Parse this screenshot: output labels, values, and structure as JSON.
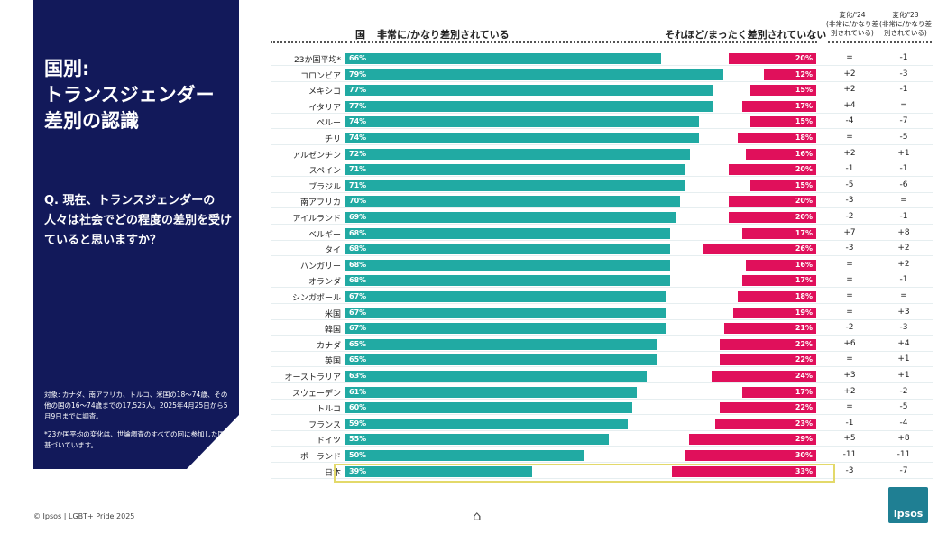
{
  "panel": {
    "title": "国別:\nトランスジェンダー\n差別の認識",
    "question": "Q. 現在、トランスジェンダーの人々は社会でどの程度の差別を受けていると思いますか？",
    "note1": "対象: カナダ、南アフリカ、トルコ、米国の18～74歳、その他の国の16～74歳までの17,525人。2025年4月25日から5月9日までに調査。",
    "note2": "*23か国平均の変化は、世論調査のすべての回に参加した国に基づいています。"
  },
  "footer": "© Ipsos | LGBT+ Pride 2025",
  "logo": "Ipsos",
  "chart_data": {
    "type": "bar",
    "headers": {
      "country": "国",
      "left": "非常に/かなり差別されている",
      "right": "それほど/まったく差別されていない",
      "chg24": "変化/'24\n(非常に/かなり差別されている)",
      "chg23": "変化/'23\n(非常に/かなり差別されている)"
    },
    "colors": {
      "discriminated": "#21aaa3",
      "not_discriminated": "#e0105b",
      "highlight": "#e3d96a"
    },
    "highlighted": "日本",
    "rows": [
      [
        "23か国平均*",
        66,
        20,
        "=",
        "-1"
      ],
      [
        "コロンビア",
        79,
        12,
        "+2",
        "-3"
      ],
      [
        "メキシコ",
        77,
        15,
        "+2",
        "-1"
      ],
      [
        "イタリア",
        77,
        17,
        "+4",
        "="
      ],
      [
        "ペルー",
        74,
        15,
        "-4",
        "-7"
      ],
      [
        "チリ",
        74,
        18,
        "=",
        "-5"
      ],
      [
        "アルゼンチン",
        72,
        16,
        "+2",
        "+1"
      ],
      [
        "スペイン",
        71,
        20,
        "-1",
        "-1"
      ],
      [
        "ブラジル",
        71,
        15,
        "-5",
        "-6"
      ],
      [
        "南アフリカ",
        70,
        20,
        "-3",
        "="
      ],
      [
        "アイルランド",
        69,
        20,
        "-2",
        "-1"
      ],
      [
        "ベルギー",
        68,
        17,
        "+7",
        "+8"
      ],
      [
        "タイ",
        68,
        26,
        "-3",
        "+2"
      ],
      [
        "ハンガリー",
        68,
        16,
        "=",
        "+2"
      ],
      [
        "オランダ",
        68,
        17,
        "=",
        "-1"
      ],
      [
        "シンガポール",
        67,
        18,
        "=",
        "="
      ],
      [
        "米国",
        67,
        19,
        "=",
        "+3"
      ],
      [
        "韓国",
        67,
        21,
        "-2",
        "-3"
      ],
      [
        "カナダ",
        65,
        22,
        "+6",
        "+4"
      ],
      [
        "英国",
        65,
        22,
        "=",
        "+1"
      ],
      [
        "オーストラリア",
        63,
        24,
        "+3",
        "+1"
      ],
      [
        "スウェーデン",
        61,
        17,
        "+2",
        "-2"
      ],
      [
        "トルコ",
        60,
        22,
        "=",
        "-5"
      ],
      [
        "フランス",
        59,
        23,
        "-1",
        "-4"
      ],
      [
        "ドイツ",
        55,
        29,
        "+5",
        "+8"
      ],
      [
        "ポーランド",
        50,
        30,
        "-11",
        "-11"
      ],
      [
        "日本",
        39,
        33,
        "-3",
        "-7"
      ]
    ]
  }
}
